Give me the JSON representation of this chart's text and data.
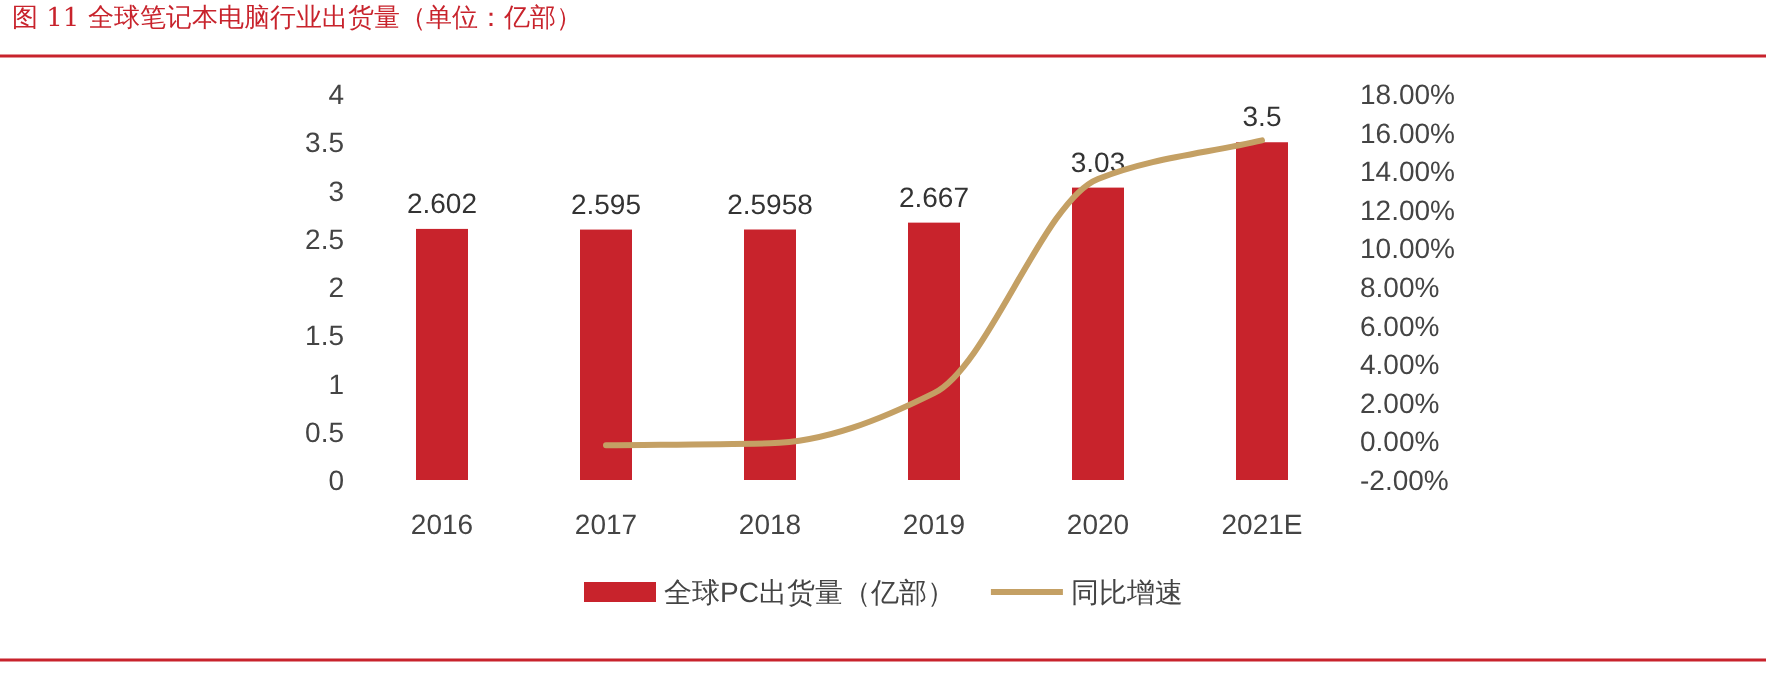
{
  "chart_data": {
    "type": "bar",
    "title": "图 11 全球笔记本电脑行业出货量（单位：亿部）",
    "categories": [
      "2016",
      "2017",
      "2018",
      "2019",
      "2020",
      "2021E"
    ],
    "series": [
      {
        "name": "全球PC出货量（亿部）",
        "color": "#c8232c",
        "values": [
          2.602,
          2.595,
          2.5958,
          2.667,
          3.03,
          3.5
        ],
        "value_labels": [
          "2.602",
          "2.595",
          "2.5958",
          "2.667",
          "3.03",
          "3.5"
        ]
      },
      {
        "name": "同比增速",
        "type": "line",
        "axis": "y2",
        "color": "#c4a064",
        "values": [
          null,
          -0.2,
          -0.1,
          2.5,
          13.6,
          15.6
        ]
      }
    ],
    "ylim": [
      0,
      4
    ],
    "yticks": [
      0,
      0.5,
      1,
      1.5,
      2,
      2.5,
      3,
      3.5,
      4
    ],
    "y2lim": [
      -2,
      18
    ],
    "y2ticks": [
      {
        "value": -2,
        "label": "-2.00%"
      },
      {
        "value": 0,
        "label": "0.00%"
      },
      {
        "value": 2,
        "label": "2.00%"
      },
      {
        "value": 4,
        "label": "4.00%"
      },
      {
        "value": 6,
        "label": "6.00%"
      },
      {
        "value": 8,
        "label": "8.00%"
      },
      {
        "value": 10,
        "label": "10.00%"
      },
      {
        "value": 12,
        "label": "12.00%"
      },
      {
        "value": 14,
        "label": "14.00%"
      },
      {
        "value": 16,
        "label": "16.00%"
      },
      {
        "value": 18,
        "label": "18.00%"
      }
    ],
    "grid": false,
    "legend": "bottom"
  }
}
